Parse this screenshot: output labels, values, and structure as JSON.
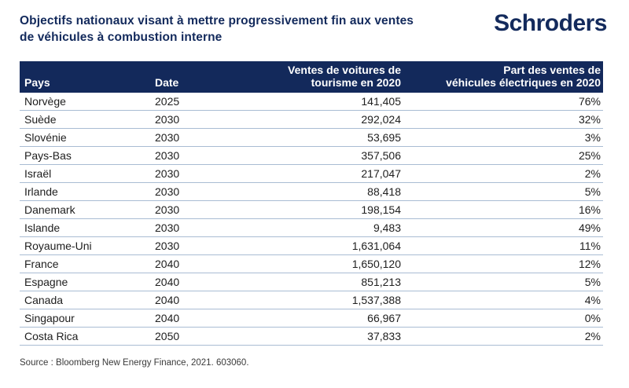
{
  "header": {
    "title_lines": [
      "Objectifs nationaux visant à mettre progressivement fin aux ventes",
      "de véhicules à combustion interne"
    ],
    "logo": {
      "part1": "Schr",
      "o": "o",
      "part2": "ders"
    }
  },
  "chart_data": {
    "type": "table",
    "title": "Objectifs nationaux visant à mettre progressivement fin aux ventes de véhicules à combustion interne",
    "columns": [
      {
        "label_lines": [
          "Pays"
        ],
        "align": "left"
      },
      {
        "label_lines": [
          "Date"
        ],
        "align": "left"
      },
      {
        "label_lines": [
          "Ventes de voitures de",
          "tourisme en 2020"
        ],
        "align": "right"
      },
      {
        "label_lines": [
          "Part des ventes de",
          "véhicules électriques en 2020"
        ],
        "align": "right"
      }
    ],
    "rows": [
      [
        "Norvège",
        "2025",
        "141,405",
        "76%"
      ],
      [
        "Suède",
        "2030",
        "292,024",
        "32%"
      ],
      [
        "Slovénie",
        "2030",
        "53,695",
        "3%"
      ],
      [
        "Pays-Bas",
        "2030",
        "357,506",
        "25%"
      ],
      [
        "Israël",
        "2030",
        "217,047",
        "2%"
      ],
      [
        "Irlande",
        "2030",
        "88,418",
        "5%"
      ],
      [
        "Danemark",
        "2030",
        "198,154",
        "16%"
      ],
      [
        "Islande",
        "2030",
        "9,483",
        "49%"
      ],
      [
        "Royaume-Uni",
        "2030",
        "1,631,064",
        "11%"
      ],
      [
        "France",
        "2040",
        "1,650,120",
        "12%"
      ],
      [
        "Espagne",
        "2040",
        "851,213",
        "5%"
      ],
      [
        "Canada",
        "2040",
        "1,537,388",
        "4%"
      ],
      [
        "Singapour",
        "2040",
        "66,967",
        "0%"
      ],
      [
        "Costa Rica",
        "2050",
        "37,833",
        "2%"
      ]
    ]
  },
  "footer": {
    "source": "Source : Bloomberg New Energy Finance, 2021. 603060."
  },
  "colors": {
    "brand_navy": "#13295b",
    "row_divider": "#a9bcd3",
    "body_text": "#202020"
  }
}
